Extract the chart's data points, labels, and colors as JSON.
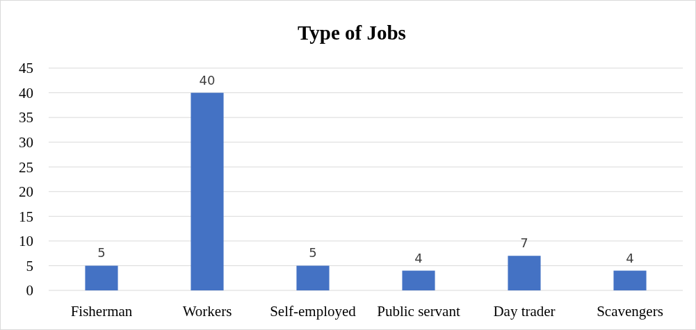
{
  "chart_data": {
    "type": "bar",
    "title": "Type of Jobs",
    "categories": [
      "Fisherman",
      "Workers",
      "Self-employed",
      "Public servant",
      "Day trader",
      "Scavengers"
    ],
    "values": [
      5,
      40,
      5,
      4,
      7,
      4
    ],
    "color": "#4472c4",
    "ylim": [
      0,
      45
    ],
    "yticks": [
      0,
      5,
      10,
      15,
      20,
      25,
      30,
      35,
      40,
      45
    ],
    "grid": "y",
    "data_labels": true
  }
}
